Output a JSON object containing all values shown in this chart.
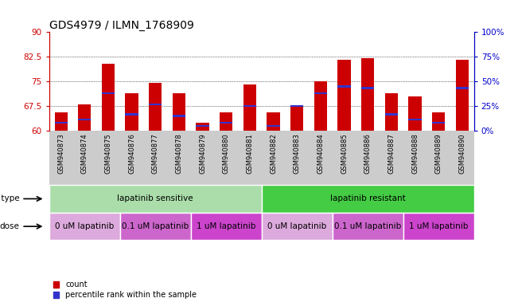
{
  "title": "GDS4979 / ILMN_1768909",
  "samples": [
    "GSM940873",
    "GSM940874",
    "GSM940875",
    "GSM940876",
    "GSM940877",
    "GSM940878",
    "GSM940879",
    "GSM940880",
    "GSM940881",
    "GSM940882",
    "GSM940883",
    "GSM940884",
    "GSM940885",
    "GSM940886",
    "GSM940887",
    "GSM940888",
    "GSM940889",
    "GSM940890"
  ],
  "bar_heights": [
    65.5,
    68.0,
    80.5,
    71.5,
    74.5,
    71.5,
    62.5,
    65.5,
    74.0,
    65.5,
    67.5,
    75.0,
    81.5,
    82.0,
    71.5,
    70.5,
    65.5,
    81.5
  ],
  "blue_positions": [
    62.5,
    63.5,
    71.5,
    65.0,
    68.0,
    64.5,
    61.5,
    62.5,
    67.5,
    61.5,
    67.5,
    71.5,
    73.5,
    73.0,
    65.0,
    63.5,
    62.5,
    73.0
  ],
  "ymin": 60,
  "ymax": 90,
  "yticks": [
    60,
    67.5,
    75,
    82.5,
    90
  ],
  "right_yticks": [
    0,
    25,
    50,
    75,
    100
  ],
  "bar_color": "#cc0000",
  "blue_color": "#3333cc",
  "bar_width": 0.55,
  "cell_type_groups": [
    {
      "label": "lapatinib sensitive",
      "start": 0,
      "end": 9,
      "color": "#aaddaa"
    },
    {
      "label": "lapatinib resistant",
      "start": 9,
      "end": 18,
      "color": "#44cc44"
    }
  ],
  "dose_groups": [
    {
      "label": "0 uM lapatinib",
      "start": 0,
      "end": 3,
      "color": "#ddaadd"
    },
    {
      "label": "0.1 uM lapatinib",
      "start": 3,
      "end": 6,
      "color": "#cc66cc"
    },
    {
      "label": "1 uM lapatinib",
      "start": 6,
      "end": 9,
      "color": "#cc44cc"
    },
    {
      "label": "0 uM lapatinib",
      "start": 9,
      "end": 12,
      "color": "#ddaadd"
    },
    {
      "label": "0.1 uM lapatinib",
      "start": 12,
      "end": 15,
      "color": "#cc66cc"
    },
    {
      "label": "1 uM lapatinib",
      "start": 15,
      "end": 18,
      "color": "#cc44cc"
    }
  ],
  "left_tick_color": "#cc0000",
  "right_tick_color": "#0000cc",
  "grid_color": "black",
  "bg_color": "#ffffff",
  "xticklabel_bg": "#cccccc",
  "title_fontsize": 10,
  "tick_fontsize": 7.5,
  "xtick_fontsize": 6,
  "annot_fontsize": 7.5
}
